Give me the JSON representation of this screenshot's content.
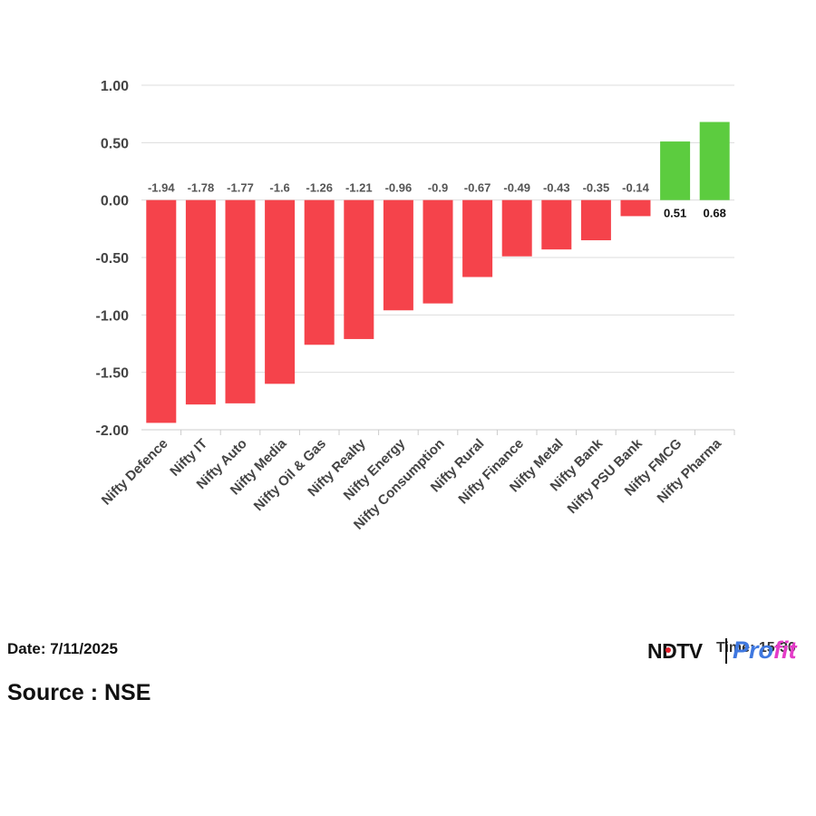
{
  "chart_data": {
    "type": "bar",
    "categories": [
      "Nifty Defence",
      "Nifty IT",
      "Nifty Auto",
      "Nifty Media",
      "Nifty Oil & Gas",
      "Nifty Realty",
      "Nifty Energy",
      "Nifty Consumption",
      "Nifty Rural",
      "Nifty Finance",
      "Nifty Metal",
      "Nifty Bank",
      "Nifty PSU Bank",
      "Nifty FMCG",
      "Nifty Pharma"
    ],
    "values": [
      -1.94,
      -1.78,
      -1.77,
      -1.6,
      -1.26,
      -1.21,
      -0.96,
      -0.9,
      -0.67,
      -0.49,
      -0.43,
      -0.35,
      -0.14,
      0.51,
      0.68
    ],
    "value_labels": [
      "-1.94",
      "-1.78",
      "-1.77",
      "-1.6",
      "-1.26",
      "-1.21",
      "-0.96",
      "-0.9",
      "-0.67",
      "-0.49",
      "-0.43",
      "-0.35",
      "-0.14",
      "0.51",
      "0.68"
    ],
    "y_ticks": [
      "1.00",
      "0.50",
      "0.00",
      "-0.50",
      "-1.00",
      "-1.50",
      "-2.00"
    ],
    "y_tick_values": [
      1,
      0.5,
      0,
      -0.5,
      -1,
      -1.5,
      -2
    ],
    "ylim": [
      -2,
      1
    ],
    "grid": true,
    "colors": {
      "negative": "#f5434b",
      "positive": "#5ccc3f",
      "grid": "#dddddd",
      "label_negative": "#555555",
      "label_positive": "#111111"
    }
  },
  "footer": {
    "date": "Date: 7/11/2025",
    "source": "Source : NSE",
    "brand_ndtv": "NDTV",
    "brand_profit_a": "Pro",
    "brand_profit_b": "fit",
    "time": "Time: 15:30"
  }
}
